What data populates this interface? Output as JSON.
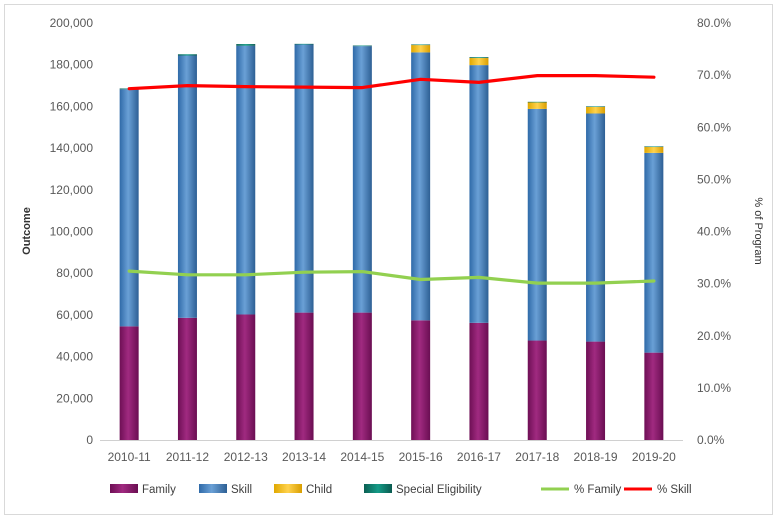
{
  "chart_data": {
    "type": "bar",
    "stacked": true,
    "title": "",
    "xlabel": "",
    "ylabel": "Outcome",
    "y2label": "% of Program",
    "ylim": [
      0,
      200000
    ],
    "y2lim": [
      0,
      80
    ],
    "y_ticks": [
      "0",
      "20,000",
      "40,000",
      "60,000",
      "80,000",
      "100,000",
      "120,000",
      "140,000",
      "160,000",
      "180,000",
      "200,000"
    ],
    "y2_ticks": [
      "0.0%",
      "10.0%",
      "20.0%",
      "30.0%",
      "40.0%",
      "50.0%",
      "60.0%",
      "70.0%",
      "80.0%"
    ],
    "categories": [
      "2010-11",
      "2011-12",
      "2012-13",
      "2013-14",
      "2014-15",
      "2015-16",
      "2016-17",
      "2017-18",
      "2018-19",
      "2019-20"
    ],
    "series": [
      {
        "name": "Family",
        "kind": "bar",
        "color": "#8b1a6b",
        "values": [
          54500,
          58600,
          60200,
          61100,
          61100,
          57400,
          56200,
          47700,
          47200,
          41900
        ]
      },
      {
        "name": "Skill",
        "kind": "bar",
        "color": "#4a86c5",
        "values": [
          113700,
          125800,
          128900,
          128600,
          127800,
          128500,
          123600,
          111100,
          109400,
          95800
        ]
      },
      {
        "name": "Child",
        "kind": "bar",
        "color": "#ffc000",
        "values": [
          0,
          0,
          0,
          0,
          0,
          3500,
          3400,
          3300,
          3300,
          3000
        ]
      },
      {
        "name": "Special Eligibility",
        "kind": "bar",
        "color": "#0f7f6f",
        "values": [
          400,
          600,
          800,
          300,
          300,
          300,
          400,
          100,
          100,
          100
        ]
      },
      {
        "name": "% Family",
        "kind": "line",
        "axis": "right",
        "color": "#92d050",
        "values": [
          32.4,
          31.7,
          31.7,
          32.2,
          32.3,
          30.8,
          31.2,
          30.1,
          30.1,
          30.5
        ]
      },
      {
        "name": "% Skill",
        "kind": "line",
        "axis": "right",
        "color": "#ff0000",
        "values": [
          67.4,
          68.0,
          67.8,
          67.7,
          67.6,
          69.2,
          68.6,
          69.9,
          69.9,
          69.6
        ]
      }
    ],
    "grid": false,
    "legend_position": "bottom"
  }
}
